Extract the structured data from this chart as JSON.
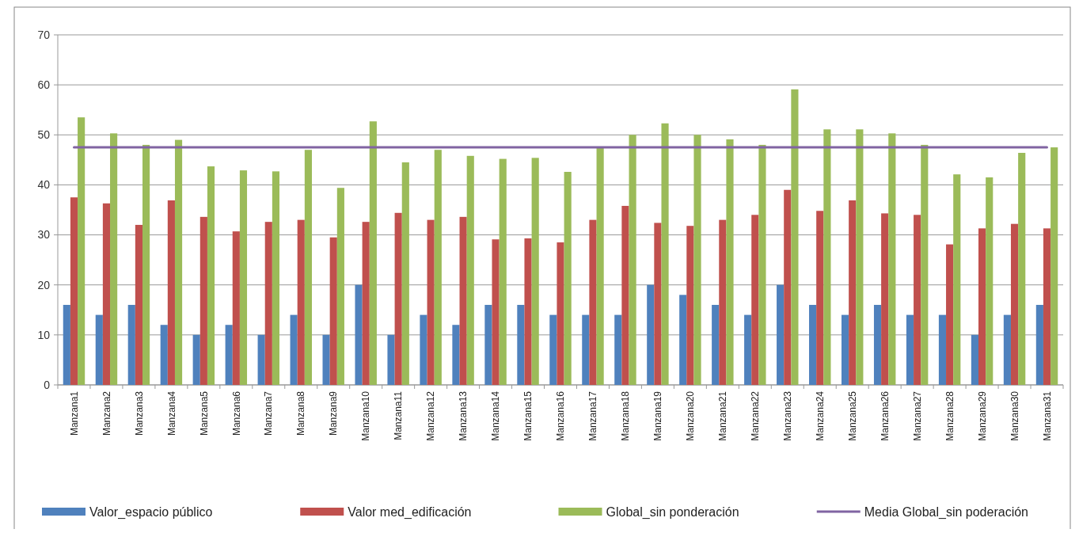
{
  "chart_data": {
    "type": "bar",
    "categories": [
      "Manzana1",
      "Manzana2",
      "Manzana3",
      "Manzana4",
      "Manzana5",
      "Manzana6",
      "Manzana7",
      "Manzana8",
      "Manzana9",
      "Manzana10",
      "Manzana11",
      "Manzana12",
      "Manzana13",
      "Manzana14",
      "Manzana15",
      "Manzana16",
      "Manzana17",
      "Manzana18",
      "Manzana19",
      "Manzana20",
      "Manzana21",
      "Manzana22",
      "Manzana23",
      "Manzana24",
      "Manzana25",
      "Manzana26",
      "Manzana27",
      "Manzana28",
      "Manzana29",
      "Manzana30",
      "Manzana31"
    ],
    "series": [
      {
        "name": "Valor_espacio público",
        "color": "#4f81bd",
        "values": [
          16,
          14,
          16,
          12,
          10,
          12,
          10,
          14,
          10,
          20,
          10,
          14,
          12,
          16,
          16,
          14,
          14,
          14,
          20,
          18,
          16,
          14,
          20,
          16,
          14,
          16,
          14,
          14,
          10,
          14,
          16
        ]
      },
      {
        "name": "Valor med_edificación",
        "color": "#c0504d",
        "values": [
          37.5,
          36.3,
          32,
          36.9,
          33.6,
          30.7,
          32.6,
          33,
          29.5,
          32.6,
          34.4,
          33,
          33.6,
          29.1,
          29.3,
          28.5,
          33,
          35.8,
          32.4,
          31.8,
          33,
          34,
          39,
          34.8,
          36.9,
          34.3,
          34,
          28.1,
          31.3,
          32.2,
          31.3
        ]
      },
      {
        "name": "Global_sin ponderación",
        "color": "#9bbb59",
        "values": [
          53.5,
          50.3,
          48,
          49,
          43.7,
          42.9,
          42.7,
          47,
          39.4,
          52.7,
          44.5,
          47,
          45.8,
          45.2,
          45.4,
          42.6,
          47.6,
          50,
          52.3,
          50,
          49.1,
          48,
          59.1,
          51.1,
          51.1,
          50.3,
          48,
          42.1,
          41.5,
          46.4,
          47.5
        ]
      },
      {
        "name": "Media Global_sin poderación",
        "type": "line",
        "color": "#8064a2",
        "values": [
          47.5,
          47.5,
          47.5,
          47.5,
          47.5,
          47.5,
          47.5,
          47.5,
          47.5,
          47.5,
          47.5,
          47.5,
          47.5,
          47.5,
          47.5,
          47.5,
          47.5,
          47.5,
          47.5,
          47.5,
          47.5,
          47.5,
          47.5,
          47.5,
          47.5,
          47.5,
          47.5,
          47.5,
          47.5,
          47.5,
          47.5
        ]
      }
    ],
    "ylim": [
      0,
      70
    ],
    "yticks": [
      0,
      10,
      20,
      30,
      40,
      50,
      60,
      70
    ],
    "grid": "y",
    "legend": "bottom"
  }
}
